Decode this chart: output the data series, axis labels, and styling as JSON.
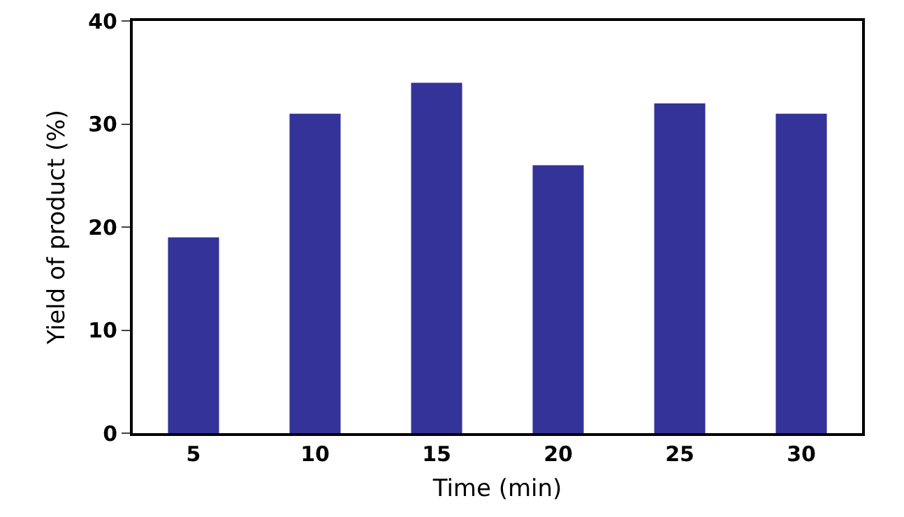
{
  "chart_data": {
    "type": "bar",
    "xlabel": "Time (min)",
    "ylabel": "Yield of product (%)",
    "categories": [
      "5",
      "10",
      "15",
      "20",
      "25",
      "30"
    ],
    "values": [
      19,
      31,
      34,
      26,
      32,
      31
    ],
    "color": "#333399",
    "ylim": [
      0,
      40
    ],
    "yticks": [
      0,
      10,
      20,
      30,
      40
    ],
    "grid": false
  }
}
